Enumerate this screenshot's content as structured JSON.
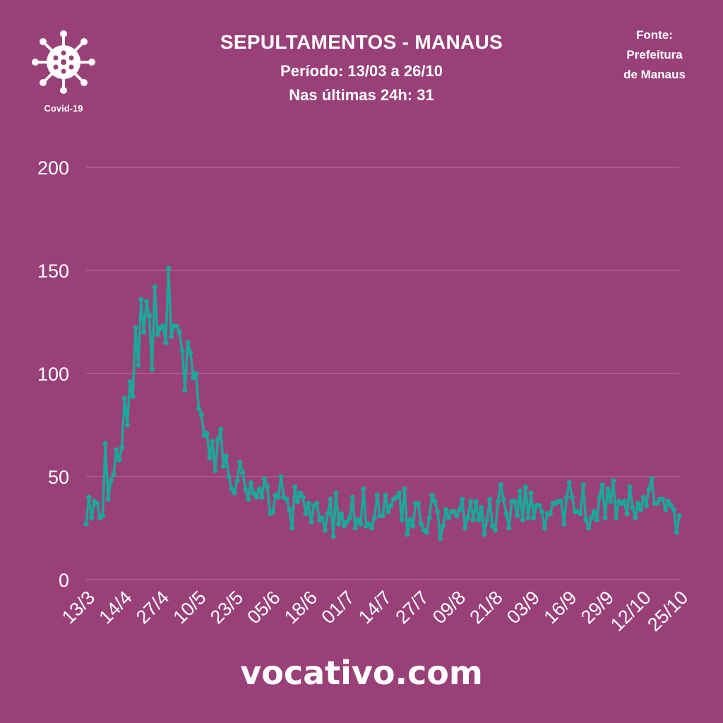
{
  "header": {
    "title": "SEPULTAMENTOS - MANAUS",
    "period": "Período: 13/03 a 26/10",
    "last24h": "Nas últimas 24h: 31",
    "source_line1": "Fonte:",
    "source_line2": "Prefeitura",
    "source_line3": "de Manaus",
    "logo_label": "Covid-19",
    "logo_icon": "virus-icon"
  },
  "footer": {
    "brand": "vocativo.com"
  },
  "colors": {
    "background": "#9a4079",
    "line": "#1aa89a",
    "grid": "#b873a2",
    "text": "#ffffff"
  },
  "chart_data": {
    "type": "line",
    "title": "SEPULTAMENTOS - MANAUS",
    "xlabel": "",
    "ylabel": "",
    "ylim": [
      0,
      200
    ],
    "yticks": [
      0,
      50,
      100,
      150,
      200
    ],
    "grid": true,
    "tick_labels": [
      "13/3",
      "14/4",
      "27/4",
      "10/5",
      "23/5",
      "05/6",
      "18/6",
      "01/7",
      "14/7",
      "27/7",
      "09/8",
      "21/8",
      "03/9",
      "16/9",
      "29/9",
      "12/10",
      "25/10"
    ],
    "series": [
      {
        "values": [
          27,
          40,
          30,
          38,
          37,
          30,
          31,
          66,
          39,
          48,
          51,
          63,
          58,
          64,
          88,
          75,
          96,
          89,
          122,
          104,
          136,
          120,
          135,
          128,
          102,
          142,
          119,
          122,
          123,
          115,
          151,
          118,
          123,
          123,
          120,
          111,
          92,
          115,
          110,
          98,
          100,
          83,
          80,
          70,
          71,
          59,
          67,
          53,
          68,
          73,
          55,
          60,
          50,
          44,
          42,
          48,
          57,
          52,
          44,
          39,
          47,
          42,
          40,
          44,
          40,
          49,
          45,
          32,
          33,
          41,
          40,
          50,
          40,
          39,
          34,
          25,
          45,
          38,
          42,
          40,
          32,
          37,
          28,
          36,
          37,
          29,
          30,
          24,
          32,
          39,
          21,
          42,
          27,
          32,
          26,
          28,
          30,
          40,
          25,
          29,
          27,
          44,
          26,
          27,
          25,
          30,
          41,
          31,
          31,
          41,
          33,
          36,
          39,
          40,
          42,
          29,
          44,
          22,
          29,
          26,
          37,
          37,
          27,
          24,
          23,
          30,
          41,
          38,
          33,
          20,
          26,
          34,
          30,
          33,
          33,
          31,
          34,
          39,
          25,
          30,
          38,
          29,
          38,
          29,
          35,
          22,
          29,
          39,
          26,
          24,
          38,
          46,
          39,
          32,
          25,
          38,
          38,
          31,
          43,
          29,
          45,
          30,
          42,
          30,
          36,
          36,
          33,
          25,
          32,
          32,
          37,
          37,
          38,
          38,
          27,
          40,
          47,
          40,
          33,
          33,
          32,
          46,
          29,
          25,
          30,
          33,
          29,
          40,
          46,
          30,
          44,
          38,
          48,
          30,
          38,
          37,
          38,
          32,
          45,
          35,
          30,
          37,
          34,
          40,
          36,
          44,
          49,
          37,
          37,
          39,
          39,
          34,
          38,
          36,
          34,
          23,
          31
        ]
      }
    ]
  }
}
